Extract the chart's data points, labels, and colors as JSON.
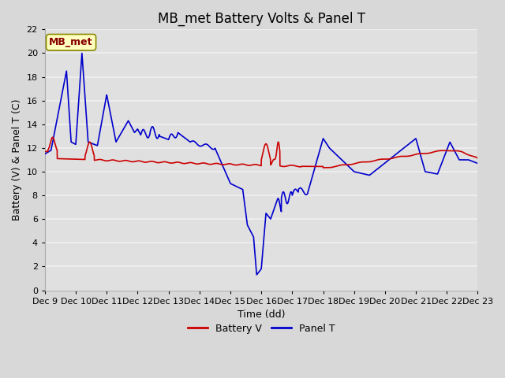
{
  "title": "MB_met Battery Volts & Panel T",
  "xlabel": "Time (dd)",
  "ylabel": "Battery (V) & Panel T (C)",
  "ylim": [
    0,
    22
  ],
  "yticks": [
    0,
    2,
    4,
    6,
    8,
    10,
    12,
    14,
    16,
    18,
    20,
    22
  ],
  "xtick_labels": [
    "Dec 9",
    "Dec 10",
    "Dec 11",
    "Dec 12",
    "Dec 13",
    "Dec 14",
    "Dec 15",
    "Dec 16",
    "Dec 17",
    "Dec 18",
    "Dec 19",
    "Dec 20",
    "Dec 21",
    "Dec 22",
    "Dec 23"
  ],
  "bg_color": "#d8d8d8",
  "plot_bg_color": "#e0e0e0",
  "grid_color": "#f0f0f0",
  "battery_color": "#cc0000",
  "panel_color": "#0000cc",
  "legend_label_battery": "Battery V",
  "legend_label_panel": "Panel T",
  "station_label": "MB_met",
  "station_label_color": "#880000",
  "station_box_color": "#ffffc0",
  "station_box_edge": "#888800",
  "title_fontsize": 12,
  "axis_label_fontsize": 9,
  "tick_fontsize": 8,
  "legend_fontsize": 9
}
